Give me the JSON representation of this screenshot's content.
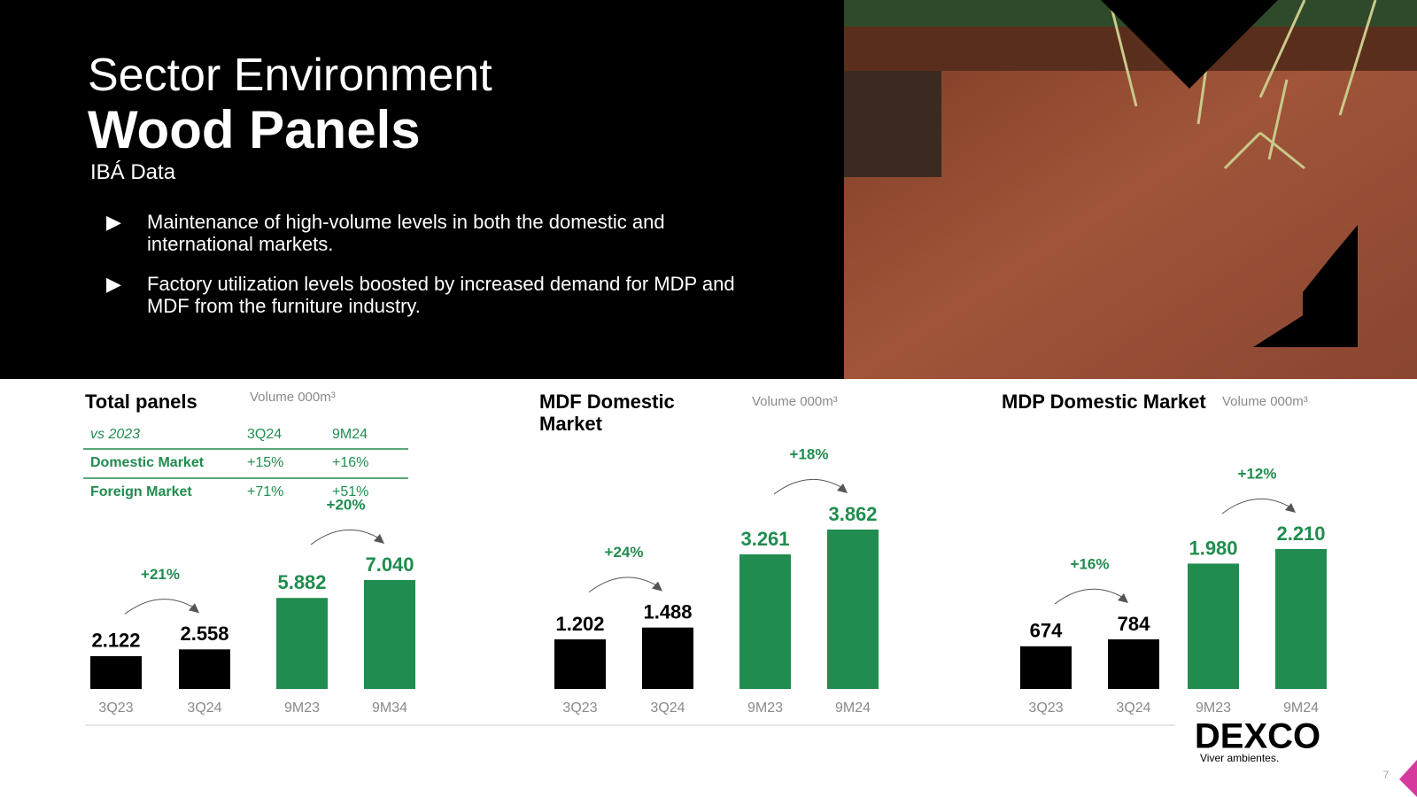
{
  "header": {
    "title": "Sector Environment",
    "subtitle": "Wood Panels",
    "source": "IBÁ Data",
    "bullets": [
      "Maintenance of high-volume levels in both the domestic and international markets.",
      "Factory utilization levels boosted by increased demand for MDP and MDF from the furniture industry."
    ]
  },
  "table": {
    "header": [
      "vs 2023",
      "3Q24",
      "9M24"
    ],
    "rows": [
      [
        "Domestic Market",
        "+15%",
        "+16%"
      ],
      [
        "Foreign Market",
        "+71%",
        "+51%"
      ]
    ]
  },
  "chart_data": [
    {
      "type": "bar",
      "title": "Total panels",
      "subtitle": "Volume 000m³",
      "categories": [
        "3Q23",
        "3Q24",
        "9M23",
        "9M34"
      ],
      "values": [
        2122,
        2558,
        5882,
        7040
      ],
      "value_labels": [
        "2.122",
        "2.558",
        "5.882",
        "7.040"
      ],
      "colors": [
        "#000000",
        "#000000",
        "#218c4f",
        "#218c4f"
      ],
      "annotations": [
        "+21%",
        "+20%"
      ]
    },
    {
      "type": "bar",
      "title": "MDF Domestic Market",
      "subtitle": "Volume 000m³",
      "categories": [
        "3Q23",
        "3Q24",
        "9M23",
        "9M24"
      ],
      "values": [
        1202,
        1488,
        3261,
        3862
      ],
      "value_labels": [
        "1.202",
        "1.488",
        "3.261",
        "3.862"
      ],
      "colors": [
        "#000000",
        "#000000",
        "#218c4f",
        "#218c4f"
      ],
      "annotations": [
        "+24%",
        "+18%"
      ]
    },
    {
      "type": "bar",
      "title": "MDP Domestic Market",
      "subtitle": "Volume 000m³",
      "categories": [
        "3Q23",
        "3Q24",
        "9M23",
        "9M24"
      ],
      "values": [
        674,
        784,
        1980,
        2210
      ],
      "value_labels": [
        "674",
        "784",
        "1.980",
        "2.210"
      ],
      "colors": [
        "#000000",
        "#000000",
        "#218c4f",
        "#218c4f"
      ],
      "annotations": [
        "+16%",
        "+12%"
      ]
    }
  ],
  "footer": {
    "logo": "DEXCO",
    "tagline": "Viver ambientes.",
    "page": "7"
  }
}
